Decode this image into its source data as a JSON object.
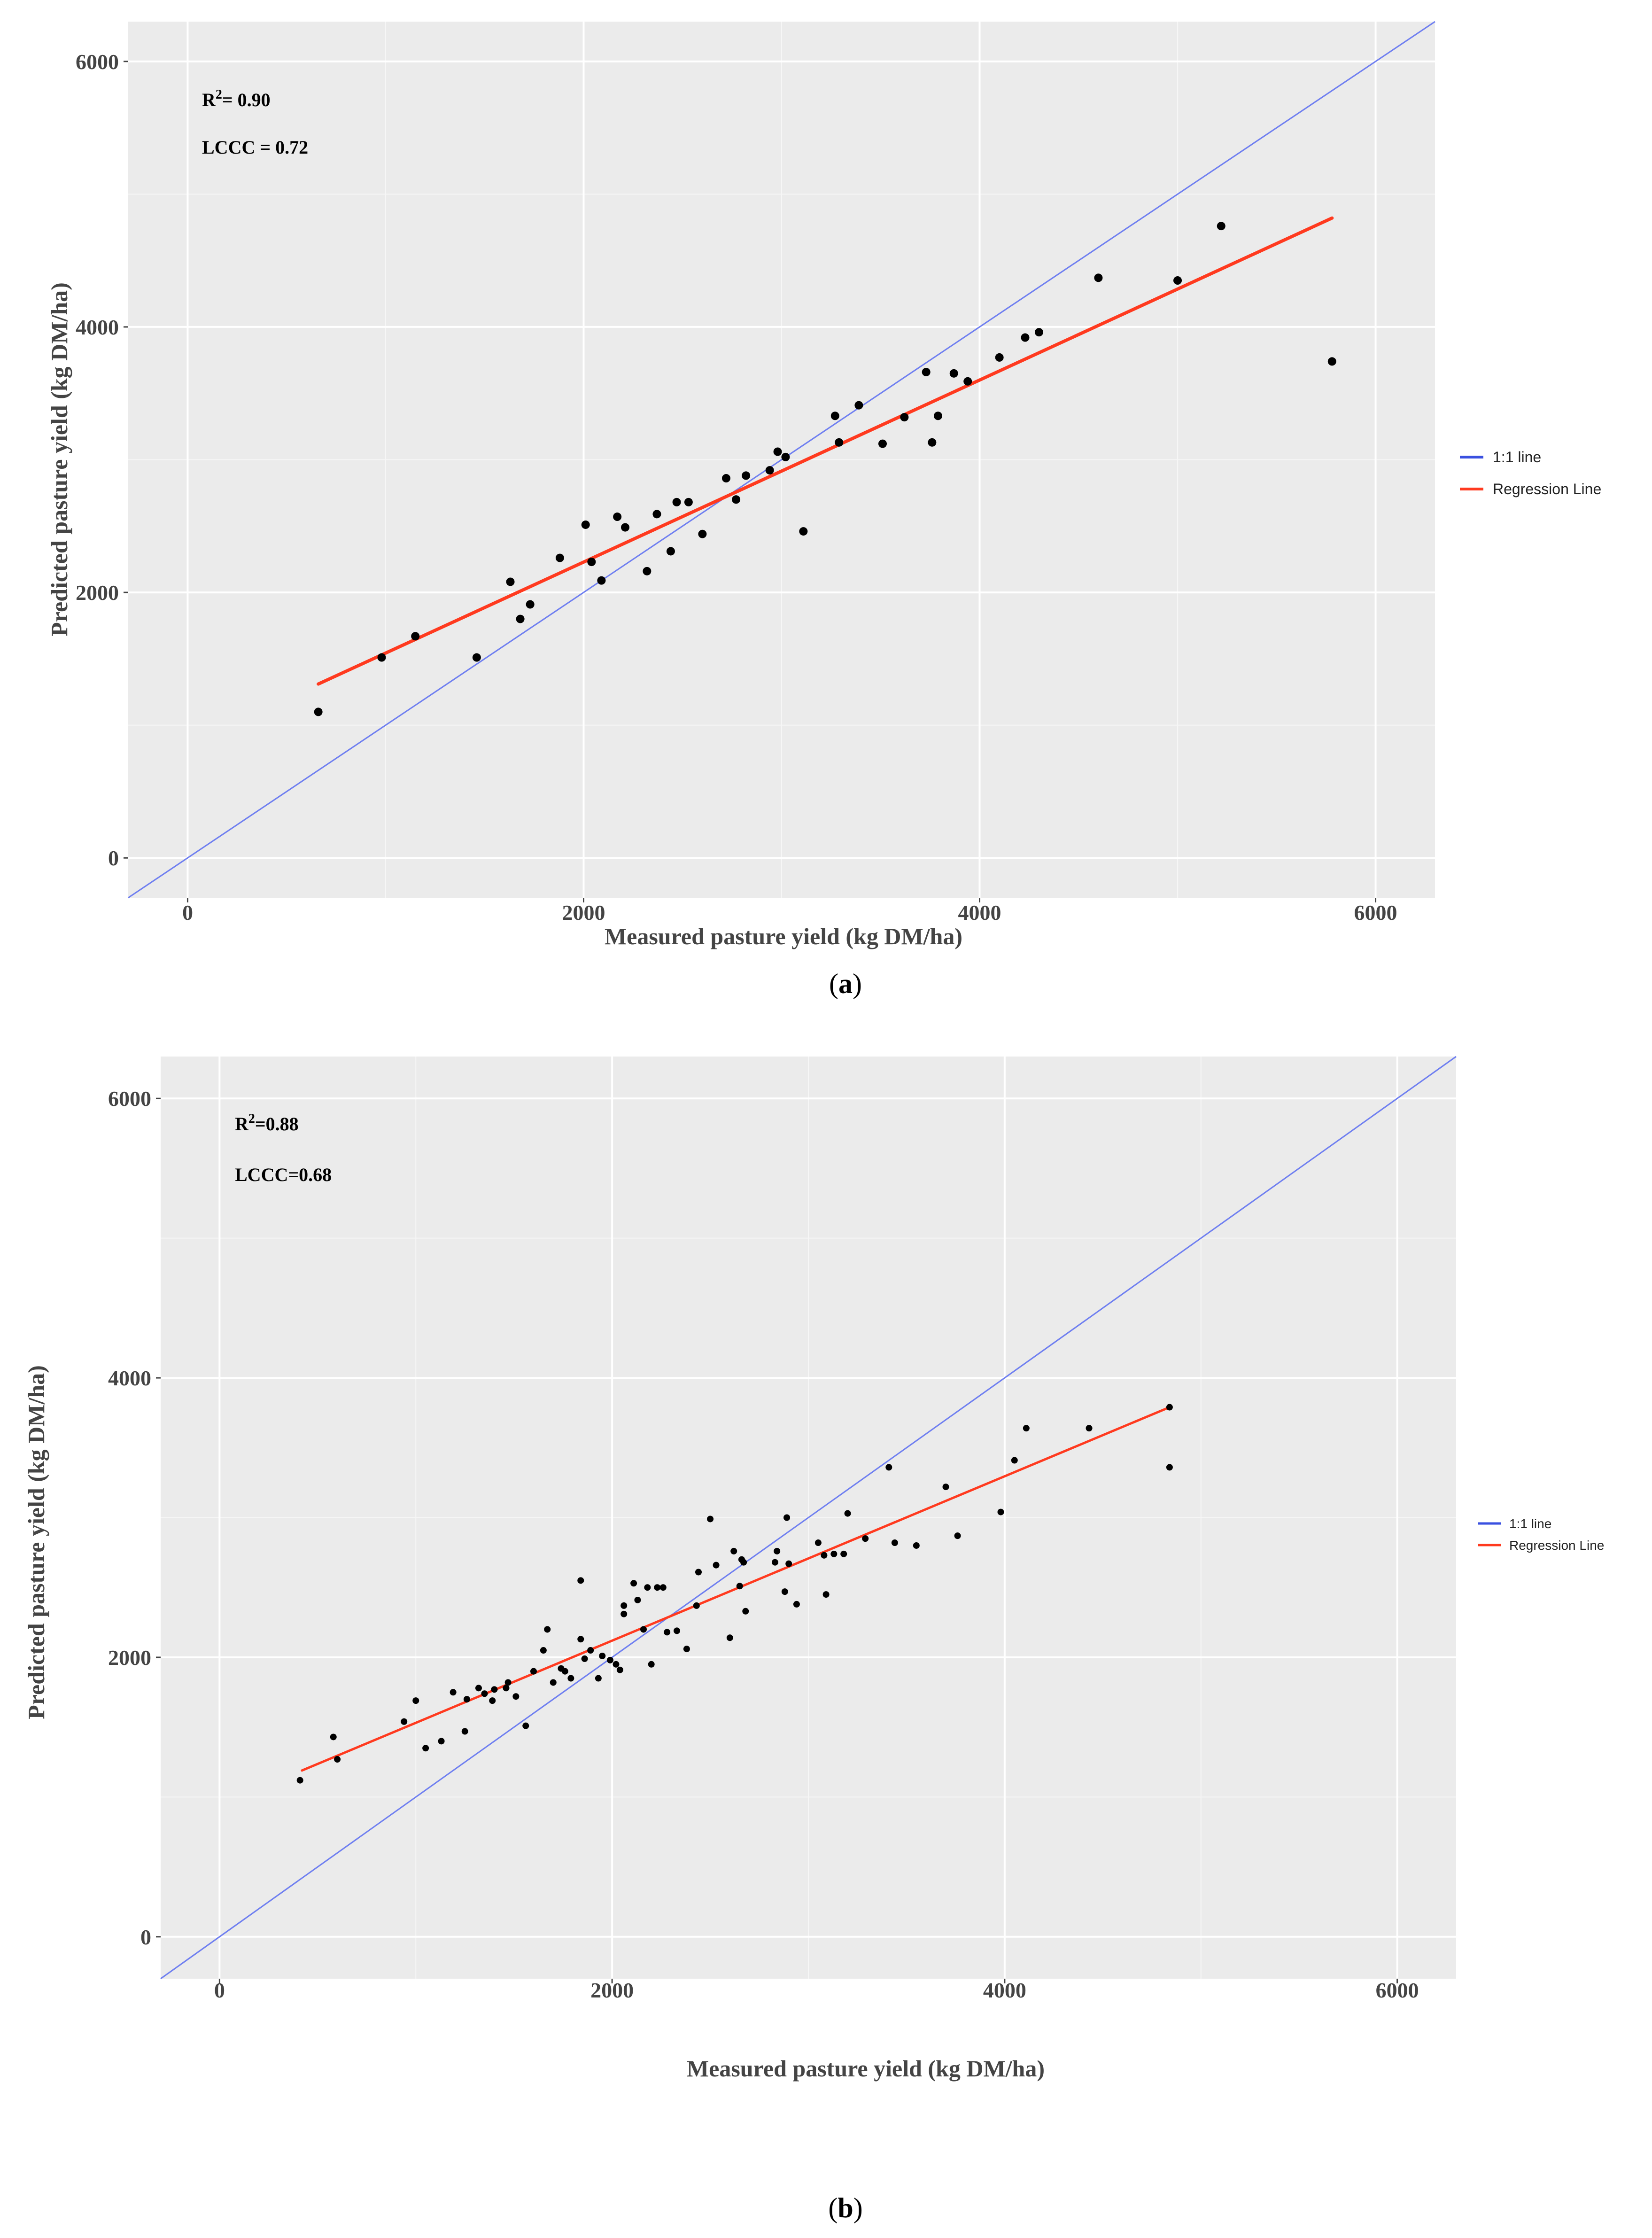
{
  "chart_data": [
    {
      "type": "scatter",
      "panel": "a",
      "xlabel": "Measured pasture yield (kg DM/ha)",
      "ylabel": "Predicted pasture yield (kg DM/ha)",
      "xlim": [
        -300,
        6300
      ],
      "ylim": [
        -300,
        6300
      ],
      "xticks": [
        0,
        2000,
        4000,
        6000
      ],
      "yticks": [
        0,
        2000,
        4000,
        6000
      ],
      "annotations": {
        "r2_label": "R",
        "r2_sup": "2",
        "r2_value": "= 0.90",
        "lccc": "LCCC = 0.72"
      },
      "legend": {
        "one_to_one": "1:1 line",
        "regression": "Regression Line"
      },
      "colors": {
        "one_to_one": "#6f7ff0",
        "regression": "#ff3a1f",
        "points": "#000000",
        "panel_bg": "#ebebeb",
        "grid": "#ffffff"
      },
      "one_to_one_line": {
        "x": [
          -300,
          6300
        ],
        "y": [
          -300,
          6300
        ]
      },
      "regression_line": {
        "x": [
          660,
          5780
        ],
        "y": [
          1310,
          4820
        ]
      },
      "points": [
        [
          660,
          1100
        ],
        [
          980,
          1510
        ],
        [
          1150,
          1670
        ],
        [
          1460,
          1510
        ],
        [
          1630,
          2080
        ],
        [
          1680,
          1800
        ],
        [
          1730,
          1910
        ],
        [
          1880,
          2260
        ],
        [
          2010,
          2510
        ],
        [
          2040,
          2230
        ],
        [
          2090,
          2090
        ],
        [
          2170,
          2570
        ],
        [
          2210,
          2490
        ],
        [
          2320,
          2160
        ],
        [
          2370,
          2590
        ],
        [
          2440,
          2310
        ],
        [
          2470,
          2680
        ],
        [
          2530,
          2680
        ],
        [
          2600,
          2440
        ],
        [
          2720,
          2860
        ],
        [
          2770,
          2700
        ],
        [
          2820,
          2880
        ],
        [
          2940,
          2920
        ],
        [
          2980,
          3060
        ],
        [
          3020,
          3020
        ],
        [
          3110,
          2460
        ],
        [
          3270,
          3330
        ],
        [
          3290,
          3130
        ],
        [
          3390,
          3410
        ],
        [
          3510,
          3120
        ],
        [
          3620,
          3320
        ],
        [
          3730,
          3660
        ],
        [
          3760,
          3130
        ],
        [
          3790,
          3330
        ],
        [
          3870,
          3650
        ],
        [
          3940,
          3590
        ],
        [
          4100,
          3770
        ],
        [
          4230,
          3920
        ],
        [
          4300,
          3960
        ],
        [
          4600,
          4370
        ],
        [
          5000,
          4350
        ],
        [
          5220,
          4760
        ],
        [
          5780,
          3740
        ]
      ]
    },
    {
      "type": "scatter",
      "panel": "b",
      "xlabel": "Measured pasture yield (kg DM/ha)",
      "ylabel": "Predicted pasture yield (kg DM/ha)",
      "xlim": [
        -300,
        6300
      ],
      "ylim": [
        -300,
        6300
      ],
      "xticks": [
        0,
        2000,
        4000,
        6000
      ],
      "yticks": [
        0,
        2000,
        4000,
        6000
      ],
      "annotations": {
        "r2_label": "R",
        "r2_sup": "2",
        "r2_value": "=0.88",
        "lccc": "LCCC=0.68"
      },
      "legend": {
        "one_to_one": "1:1 line",
        "regression": "Regression Line"
      },
      "colors": {
        "one_to_one": "#6f7ff0",
        "regression": "#ff3a1f",
        "points": "#000000",
        "panel_bg": "#ebebeb",
        "grid": "#ffffff"
      },
      "one_to_one_line": {
        "x": [
          -300,
          6300
        ],
        "y": [
          -300,
          6300
        ]
      },
      "regression_line": {
        "x": [
          420,
          4840
        ],
        "y": [
          1190,
          3790
        ]
      },
      "points": [
        [
          410,
          1120
        ],
        [
          580,
          1430
        ],
        [
          600,
          1270
        ],
        [
          940,
          1540
        ],
        [
          1000,
          1690
        ],
        [
          1050,
          1350
        ],
        [
          1130,
          1400
        ],
        [
          1190,
          1750
        ],
        [
          1250,
          1470
        ],
        [
          1260,
          1700
        ],
        [
          1320,
          1780
        ],
        [
          1350,
          1740
        ],
        [
          1390,
          1690
        ],
        [
          1400,
          1770
        ],
        [
          1460,
          1780
        ],
        [
          1470,
          1820
        ],
        [
          1510,
          1720
        ],
        [
          1560,
          1510
        ],
        [
          1600,
          1900
        ],
        [
          1650,
          2050
        ],
        [
          1670,
          2200
        ],
        [
          1700,
          1820
        ],
        [
          1740,
          1920
        ],
        [
          1760,
          1900
        ],
        [
          1790,
          1850
        ],
        [
          1840,
          2550
        ],
        [
          1840,
          2130
        ],
        [
          1860,
          1990
        ],
        [
          1890,
          2050
        ],
        [
          1930,
          1850
        ],
        [
          1950,
          2010
        ],
        [
          1990,
          1980
        ],
        [
          2020,
          1950
        ],
        [
          2040,
          1910
        ],
        [
          2060,
          2310
        ],
        [
          2060,
          2370
        ],
        [
          2110,
          2530
        ],
        [
          2130,
          2410
        ],
        [
          2160,
          2200
        ],
        [
          2180,
          2500
        ],
        [
          2200,
          1950
        ],
        [
          2230,
          2500
        ],
        [
          2260,
          2500
        ],
        [
          2280,
          2180
        ],
        [
          2330,
          2190
        ],
        [
          2380,
          2060
        ],
        [
          2430,
          2370
        ],
        [
          2440,
          2610
        ],
        [
          2500,
          2990
        ],
        [
          2530,
          2660
        ],
        [
          2600,
          2140
        ],
        [
          2620,
          2760
        ],
        [
          2650,
          2510
        ],
        [
          2660,
          2700
        ],
        [
          2670,
          2680
        ],
        [
          2680,
          2330
        ],
        [
          2830,
          2680
        ],
        [
          2840,
          2760
        ],
        [
          2880,
          2470
        ],
        [
          2890,
          3000
        ],
        [
          2900,
          2670
        ],
        [
          2940,
          2380
        ],
        [
          3050,
          2820
        ],
        [
          3080,
          2730
        ],
        [
          3090,
          2450
        ],
        [
          3130,
          2740
        ],
        [
          3180,
          2740
        ],
        [
          3200,
          3030
        ],
        [
          3290,
          2850
        ],
        [
          3410,
          3360
        ],
        [
          3440,
          2820
        ],
        [
          3550,
          2800
        ],
        [
          3700,
          3220
        ],
        [
          3760,
          2870
        ],
        [
          3980,
          3040
        ],
        [
          4050,
          3410
        ],
        [
          4110,
          3640
        ],
        [
          4430,
          3640
        ],
        [
          4840,
          3790
        ],
        [
          4840,
          3360
        ]
      ]
    }
  ],
  "panels": {
    "a": {
      "open": "(",
      "letter": "a",
      "close": ")"
    },
    "b": {
      "open": "(",
      "letter": "b",
      "close": ")"
    }
  }
}
